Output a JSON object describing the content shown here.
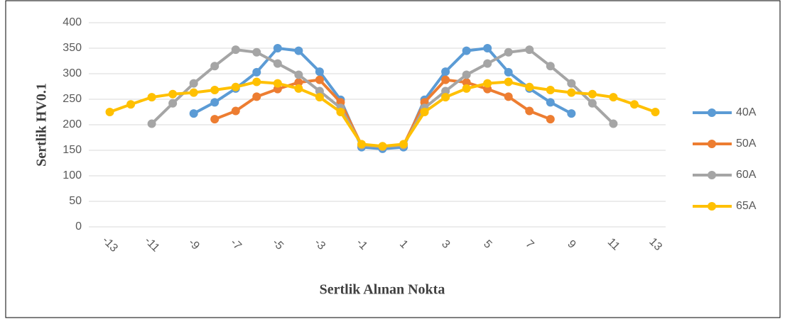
{
  "chart_data": {
    "type": "line",
    "x_label": "Sertlik  Alınan Nokta",
    "y_label": "Sertlik HV0.1",
    "x": [
      -13,
      -12,
      -11,
      -10,
      -9,
      -8,
      -7,
      -6,
      -5,
      -4,
      -3,
      -2,
      -1,
      0,
      1,
      2,
      3,
      4,
      5,
      6,
      7,
      8,
      9,
      10,
      11,
      12,
      13
    ],
    "xlim": [
      -14,
      14
    ],
    "xticks": [
      -13,
      -11,
      -9,
      -7,
      -5,
      -3,
      -1,
      1,
      3,
      5,
      7,
      9,
      11,
      13
    ],
    "ylim": [
      0,
      400
    ],
    "yticks": [
      0,
      50,
      100,
      150,
      200,
      250,
      300,
      350,
      400
    ],
    "grid": true,
    "legend": "right",
    "series": [
      {
        "name": "40A",
        "color": "#5b9bd5",
        "values": [
          null,
          null,
          null,
          null,
          222,
          244,
          271,
          303,
          350,
          345,
          304,
          249,
          156,
          153,
          156,
          249,
          304,
          345,
          350,
          303,
          271,
          244,
          222,
          null,
          null,
          null,
          null
        ]
      },
      {
        "name": "50A",
        "color": "#ed7d31",
        "values": [
          null,
          null,
          null,
          null,
          null,
          211,
          227,
          255,
          270,
          283,
          288,
          244,
          160,
          157,
          160,
          244,
          288,
          283,
          270,
          255,
          227,
          211,
          null,
          null,
          null,
          null,
          null
        ]
      },
      {
        "name": "60A",
        "color": "#a5a5a5",
        "values": [
          null,
          null,
          202,
          242,
          281,
          315,
          347,
          342,
          320,
          298,
          266,
          233,
          160,
          157,
          160,
          233,
          266,
          298,
          320,
          342,
          347,
          315,
          281,
          242,
          202,
          null,
          null
        ]
      },
      {
        "name": "65A",
        "color": "#ffc000",
        "values": [
          225,
          240,
          254,
          260,
          263,
          268,
          274,
          284,
          281,
          271,
          254,
          225,
          162,
          158,
          162,
          225,
          254,
          271,
          281,
          284,
          274,
          268,
          263,
          260,
          254,
          240,
          225
        ]
      }
    ]
  }
}
